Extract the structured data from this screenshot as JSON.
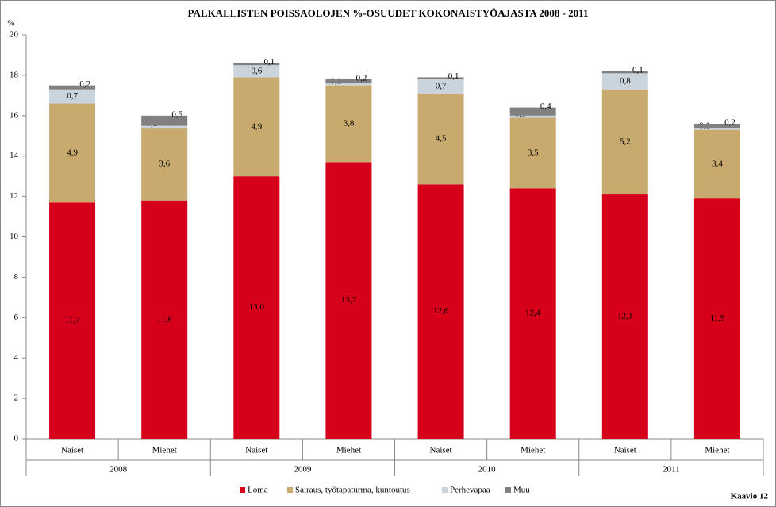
{
  "chart_data": {
    "type": "stacked-bar",
    "title": "PALKALLISTEN POISSAOLOJEN %-OSUUDET KOKONAISTYÖAJASTA 2008 - 2011",
    "y_label": "%",
    "footer": "Kaavio 12",
    "categories": [
      "Naiset",
      "Miehet",
      "Naiset",
      "Miehet",
      "Naiset",
      "Miehet",
      "Naiset",
      "Miehet"
    ],
    "groups": [
      "2008",
      "2009",
      "2010",
      "2011"
    ],
    "ylim": [
      0,
      20
    ],
    "yticks": [
      0,
      2,
      4,
      6,
      8,
      10,
      12,
      14,
      16,
      18,
      20
    ],
    "series": [
      {
        "name": "Loma",
        "color": "#d7001b",
        "values": [
          11.7,
          11.8,
          13.0,
          13.7,
          12.6,
          12.4,
          12.1,
          11.9
        ],
        "value_labels": [
          "11,7",
          "11,8",
          "13,0",
          "13,7",
          "12,6",
          "12,4",
          "12,1",
          "11,9"
        ]
      },
      {
        "name": "Sairaus, työtapaturma, kuntoutus",
        "color": "#c8a96e",
        "values": [
          4.9,
          3.6,
          4.9,
          3.8,
          4.5,
          3.5,
          5.2,
          3.4
        ],
        "value_labels": [
          "4,9",
          "3,6",
          "4,9",
          "3,8",
          "4,5",
          "3,5",
          "5,2",
          "3,4"
        ]
      },
      {
        "name": "Perhevapaa",
        "color": "#c9d4dc",
        "values": [
          0.7,
          0.1,
          0.6,
          0.1,
          0.7,
          0.1,
          0.8,
          0.1
        ],
        "value_labels": [
          "0,7",
          "0,1",
          "0,6",
          "0,1",
          "0,7",
          "0,1",
          "0,8",
          "0,1"
        ]
      },
      {
        "name": "Muu",
        "color": "#808080",
        "values": [
          0.2,
          0.5,
          0.1,
          0.2,
          0.1,
          0.4,
          0.1,
          0.2
        ],
        "value_labels": [
          "0,2",
          "0,5",
          "0,1",
          "0,2",
          "0,1",
          "0,4",
          "0,1",
          "0,2"
        ]
      }
    ]
  }
}
